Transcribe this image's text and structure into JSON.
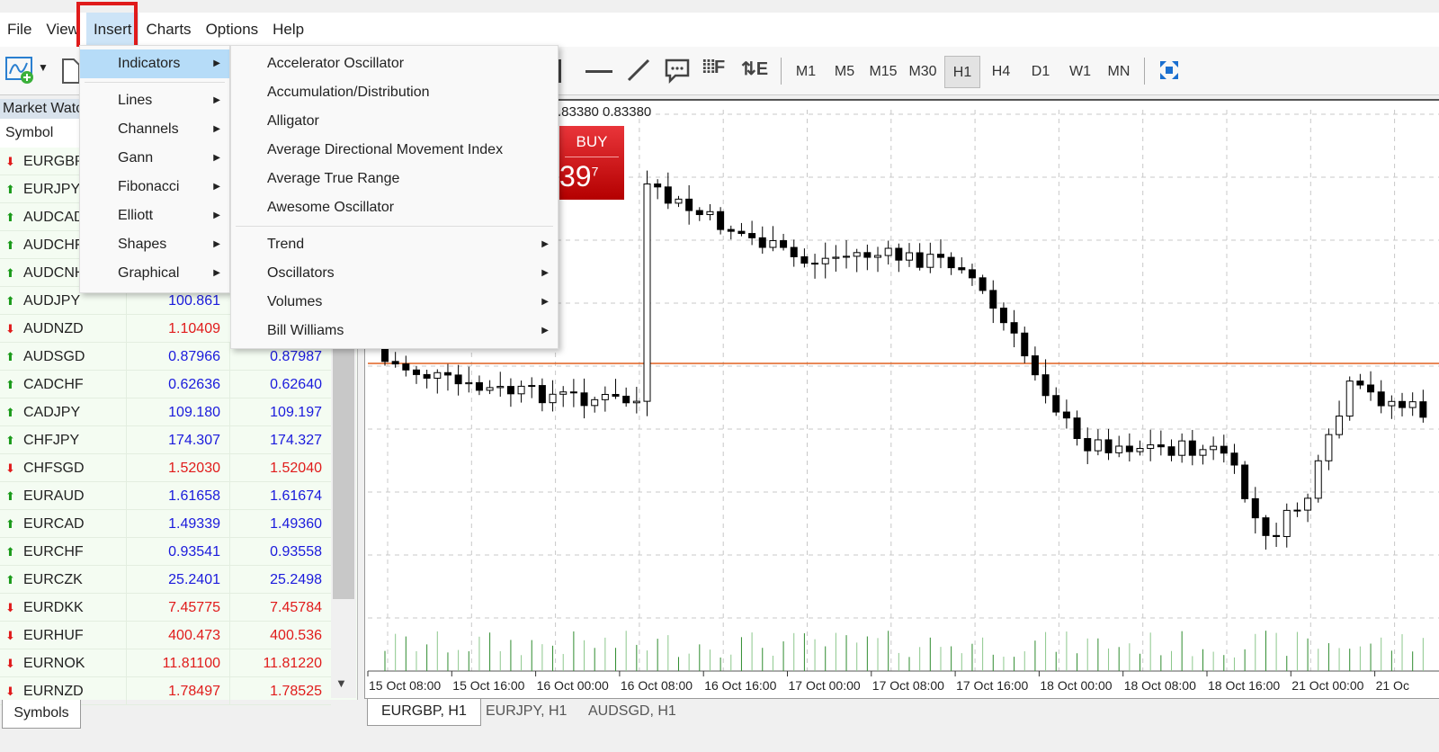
{
  "menubar": {
    "items": [
      "File",
      "View",
      "Insert",
      "Charts",
      "Options",
      "Help"
    ],
    "active": "Insert"
  },
  "toolbar": {
    "timeframes": [
      "M1",
      "M5",
      "M15",
      "M30",
      "H1",
      "H4",
      "D1",
      "W1",
      "MN"
    ],
    "selected": "H1"
  },
  "market_watch": {
    "title": "Market Watc",
    "col_symbol": "Symbol",
    "rows": [
      {
        "symbol": "EURGBP",
        "dir": "down",
        "bid": "",
        "ask": ""
      },
      {
        "symbol": "EURJPY",
        "dir": "up",
        "bid": "",
        "ask": ""
      },
      {
        "symbol": "AUDCAD",
        "dir": "up",
        "bid": "",
        "ask": ""
      },
      {
        "symbol": "AUDCHF",
        "dir": "up",
        "bid": "",
        "ask": ""
      },
      {
        "symbol": "AUDCNH",
        "dir": "up",
        "bid": "",
        "ask": ""
      },
      {
        "symbol": "AUDJPY",
        "dir": "up",
        "bid": "100.861",
        "ask": ""
      },
      {
        "symbol": "AUDNZD",
        "dir": "down",
        "bid": "1.10409",
        "ask": ""
      },
      {
        "symbol": "AUDSGD",
        "dir": "up",
        "bid": "0.87966",
        "ask": "0.87987"
      },
      {
        "symbol": "CADCHF",
        "dir": "up",
        "bid": "0.62636",
        "ask": "0.62640"
      },
      {
        "symbol": "CADJPY",
        "dir": "up",
        "bid": "109.180",
        "ask": "109.197"
      },
      {
        "symbol": "CHFJPY",
        "dir": "up",
        "bid": "174.307",
        "ask": "174.327"
      },
      {
        "symbol": "CHFSGD",
        "dir": "down",
        "bid": "1.52030",
        "ask": "1.52040"
      },
      {
        "symbol": "EURAUD",
        "dir": "up",
        "bid": "1.61658",
        "ask": "1.61674"
      },
      {
        "symbol": "EURCAD",
        "dir": "up",
        "bid": "1.49339",
        "ask": "1.49360"
      },
      {
        "symbol": "EURCHF",
        "dir": "up",
        "bid": "0.93541",
        "ask": "0.93558"
      },
      {
        "symbol": "EURCZK",
        "dir": "up",
        "bid": "25.2401",
        "ask": "25.2498"
      },
      {
        "symbol": "EURDKK",
        "dir": "down",
        "bid": "7.45775",
        "ask": "7.45784"
      },
      {
        "symbol": "EURHUF",
        "dir": "down",
        "bid": "400.473",
        "ask": "400.536"
      },
      {
        "symbol": "EURNOK",
        "dir": "down",
        "bid": "11.81100",
        "ask": "11.81220"
      },
      {
        "symbol": "EURNZD",
        "dir": "down",
        "bid": "1.78497",
        "ask": "1.78525"
      }
    ],
    "tab": "Symbols"
  },
  "insert_menu": {
    "items": [
      {
        "label": "Indicators",
        "sub": true,
        "highlighted": true
      },
      {
        "label": "Lines",
        "sub": true
      },
      {
        "label": "Channels",
        "sub": true
      },
      {
        "label": "Gann",
        "sub": true
      },
      {
        "label": "Fibonacci",
        "sub": true
      },
      {
        "label": "Elliott",
        "sub": true
      },
      {
        "label": "Shapes",
        "sub": true
      },
      {
        "label": "Graphical",
        "sub": true
      }
    ]
  },
  "indicators_menu": {
    "items": [
      {
        "label": "Accelerator Oscillator"
      },
      {
        "label": "Accumulation/Distribution"
      },
      {
        "label": "Alligator"
      },
      {
        "label": "Average Directional Movement Index"
      },
      {
        "label": "Average True Range"
      },
      {
        "label": "Awesome Oscillator"
      },
      {
        "label": "Trend",
        "sub": true
      },
      {
        "label": "Oscillators",
        "sub": true
      },
      {
        "label": "Volumes",
        "sub": true
      },
      {
        "label": "Bill Williams",
        "sub": true
      }
    ]
  },
  "chart": {
    "info": ".83380 0.83380",
    "buy_label": "BUY",
    "buy_price": "39",
    "buy_price_sup": "7",
    "time_labels": [
      "15 Oct 08:00",
      "15 Oct 16:00",
      "16 Oct 00:00",
      "16 Oct 08:00",
      "16 Oct 16:00",
      "17 Oct 00:00",
      "17 Oct 08:00",
      "17 Oct 16:00",
      "18 Oct 00:00",
      "18 Oct 08:00",
      "18 Oct 16:00",
      "21 Oct 00:00",
      "21 Oc"
    ],
    "tabs": [
      "EURGBP, H1",
      "EURJPY, H1",
      "AUDSGD, H1"
    ],
    "active_tab": "EURGBP, H1",
    "colors": {
      "price_line": "#e06020",
      "volume": "#2e8b2e",
      "buy": "#d01010",
      "bid_up": "#1a1adc",
      "bid_down": "#e01b1b"
    }
  }
}
